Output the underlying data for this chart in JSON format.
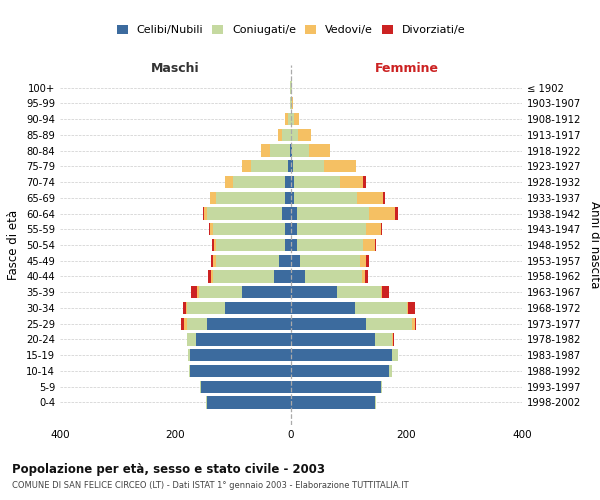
{
  "age_groups": [
    "0-4",
    "5-9",
    "10-14",
    "15-19",
    "20-24",
    "25-29",
    "30-34",
    "35-39",
    "40-44",
    "45-49",
    "50-54",
    "55-59",
    "60-64",
    "65-69",
    "70-74",
    "75-79",
    "80-84",
    "85-89",
    "90-94",
    "95-99",
    "100+"
  ],
  "birth_years": [
    "1998-2002",
    "1993-1997",
    "1988-1992",
    "1983-1987",
    "1978-1982",
    "1973-1977",
    "1968-1972",
    "1963-1967",
    "1958-1962",
    "1953-1957",
    "1948-1952",
    "1943-1947",
    "1938-1942",
    "1933-1937",
    "1928-1932",
    "1923-1927",
    "1918-1922",
    "1913-1917",
    "1908-1912",
    "1903-1907",
    "≤ 1902"
  ],
  "male": {
    "celibi": [
      145,
      155,
      175,
      175,
      165,
      145,
      115,
      85,
      30,
      20,
      10,
      10,
      15,
      10,
      10,
      5,
      2,
      0,
      0,
      0,
      0
    ],
    "coniugati": [
      2,
      2,
      2,
      3,
      15,
      35,
      65,
      75,
      105,
      110,
      120,
      125,
      130,
      120,
      90,
      65,
      35,
      15,
      5,
      2,
      1
    ],
    "vedovi": [
      0,
      0,
      0,
      0,
      0,
      5,
      2,
      2,
      3,
      5,
      3,
      5,
      5,
      10,
      15,
      15,
      15,
      8,
      5,
      0,
      0
    ],
    "divorziati": [
      0,
      0,
      0,
      0,
      0,
      5,
      5,
      12,
      5,
      3,
      3,
      2,
      2,
      0,
      0,
      0,
      0,
      0,
      0,
      0,
      0
    ]
  },
  "female": {
    "nubili": [
      145,
      155,
      170,
      175,
      145,
      130,
      110,
      80,
      25,
      15,
      10,
      10,
      10,
      5,
      5,
      3,
      2,
      0,
      0,
      0,
      0
    ],
    "coniugate": [
      2,
      2,
      5,
      10,
      30,
      80,
      90,
      75,
      98,
      105,
      115,
      120,
      125,
      110,
      80,
      55,
      30,
      12,
      5,
      1,
      1
    ],
    "vedove": [
      0,
      0,
      0,
      0,
      2,
      5,
      2,
      2,
      5,
      10,
      20,
      25,
      45,
      45,
      40,
      55,
      35,
      22,
      8,
      2,
      0
    ],
    "divorziate": [
      0,
      0,
      0,
      0,
      2,
      2,
      12,
      12,
      5,
      5,
      2,
      3,
      5,
      2,
      5,
      0,
      0,
      0,
      0,
      0,
      0
    ]
  },
  "colors": {
    "celibi_nubili": "#3C6B9E",
    "coniugati": "#C5D9A0",
    "vedovi": "#F5C063",
    "divorziati": "#CC2222"
  },
  "title_main": "Popolazione per età, sesso e stato civile - 2003",
  "title_sub": "COMUNE DI SAN FELICE CIRCEO (LT) - Dati ISTAT 1° gennaio 2003 - Elaborazione TUTTITALIA.IT",
  "ylabel_left": "Fasce di età",
  "ylabel_right": "Anni di nascita",
  "xlim": 400,
  "maschi_label": "Maschi",
  "femmine_label": "Femmine",
  "legend_labels": [
    "Celibi/Nubili",
    "Coniugati/e",
    "Vedovi/e",
    "Divorziati/e"
  ]
}
